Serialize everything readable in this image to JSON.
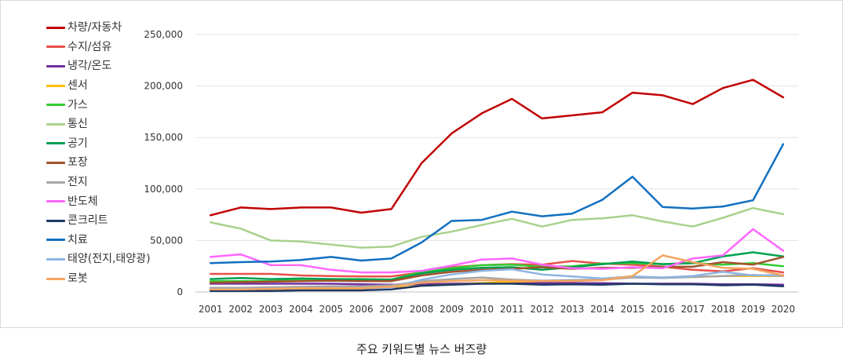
{
  "caption": "주요 키워드별 뉴스 버즈량",
  "chart_data": {
    "type": "line",
    "title": "",
    "xlabel": "",
    "ylabel": "",
    "ylim": [
      0,
      250000
    ],
    "yticks": [
      0,
      50000,
      100000,
      150000,
      200000,
      250000
    ],
    "ytick_labels": [
      "0",
      "50,000",
      "100,000",
      "150,000",
      "200,000",
      "250,000"
    ],
    "grid": true,
    "legend_position": "left",
    "x": [
      "2001",
      "2002",
      "2003",
      "2004",
      "2005",
      "2006",
      "2007",
      "2008",
      "2009",
      "2010",
      "2011",
      "2012",
      "2013",
      "2014",
      "2015",
      "2016",
      "2017",
      "2018",
      "2019",
      "2020"
    ],
    "series": [
      {
        "name": "차량/자동차",
        "color": "#c00000",
        "values": [
          74500,
          82000,
          80500,
          82000,
          82000,
          77000,
          80500,
          125000,
          154000,
          173500,
          187500,
          168500,
          171500,
          174500,
          193500,
          191000,
          182500,
          198000,
          206000,
          189000
        ]
      },
      {
        "name": "수지/섬유",
        "color": "#e8504a",
        "values": [
          17500,
          17500,
          17500,
          16000,
          15500,
          15000,
          15000,
          19000,
          24000,
          26000,
          27000,
          26500,
          30000,
          27500,
          26500,
          24500,
          21500,
          20000,
          23000,
          19000
        ]
      },
      {
        "name": "냉각/온도",
        "color": "#7030a0",
        "values": [
          8000,
          8000,
          8000,
          8000,
          8000,
          7500,
          7000,
          7500,
          8000,
          8500,
          8500,
          8500,
          8500,
          8500,
          8000,
          8000,
          8000,
          7500,
          7500,
          7000
        ]
      },
      {
        "name": "센서",
        "color": "#ffc000",
        "values": [
          2000,
          2000,
          2000,
          2500,
          2500,
          2500,
          3500,
          6000,
          7000,
          8500,
          10000,
          10500,
          11000,
          11500,
          14500,
          14000,
          14500,
          15500,
          15500,
          15500
        ]
      },
      {
        "name": "가스",
        "color": "#33cc33",
        "values": [
          10500,
          10500,
          10500,
          12500,
          12500,
          12500,
          12000,
          19500,
          23000,
          26000,
          26500,
          24500,
          25000,
          27500,
          28000,
          27000,
          28000,
          26500,
          28000,
          25000
        ]
      },
      {
        "name": "통신",
        "color": "#a9d18e",
        "values": [
          67500,
          61500,
          50000,
          49000,
          46000,
          43000,
          44000,
          53500,
          58500,
          65000,
          71000,
          63500,
          70000,
          71500,
          74500,
          68500,
          63500,
          72000,
          81500,
          75500
        ]
      },
      {
        "name": "공기",
        "color": "#00a050",
        "values": [
          12500,
          13500,
          12500,
          13000,
          12500,
          12000,
          12000,
          18000,
          21500,
          23500,
          24000,
          21500,
          24000,
          27000,
          29500,
          27000,
          28000,
          34500,
          38500,
          34500
        ]
      },
      {
        "name": "포장",
        "color": "#a0522d",
        "values": [
          9000,
          9500,
          10000,
          10500,
          11000,
          10500,
          10500,
          16000,
          19500,
          21500,
          22500,
          24000,
          22500,
          23500,
          23500,
          24500,
          24500,
          29000,
          26500,
          34000
        ]
      },
      {
        "name": "전지",
        "color": "#a6a6a6",
        "values": [
          4000,
          4000,
          4500,
          5000,
          5500,
          5500,
          6500,
          10500,
          12500,
          14000,
          12000,
          11000,
          11500,
          12000,
          14000,
          13500,
          14500,
          15500,
          16500,
          15500
        ]
      },
      {
        "name": "반도체",
        "color": "#ff66ff",
        "values": [
          34000,
          36500,
          26000,
          26000,
          21500,
          19000,
          19000,
          20500,
          25500,
          31500,
          32500,
          26500,
          23000,
          22500,
          24000,
          23000,
          32500,
          35500,
          61000,
          40000
        ]
      },
      {
        "name": "콘크리트",
        "color": "#1f3864",
        "values": [
          1000,
          1000,
          1000,
          1500,
          1500,
          1500,
          2500,
          6000,
          7000,
          8000,
          8000,
          7000,
          7500,
          7000,
          8000,
          7500,
          7500,
          6500,
          7000,
          5500
        ]
      },
      {
        "name": "치료",
        "color": "#1070c0",
        "values": [
          28000,
          29000,
          29500,
          31000,
          34000,
          30500,
          32500,
          48000,
          69000,
          70000,
          78000,
          73500,
          76000,
          89500,
          112000,
          82500,
          81000,
          83000,
          89000,
          143500
        ]
      },
      {
        "name": "태양(전지,태양광)",
        "color": "#8eb4e3",
        "values": [
          3000,
          3000,
          3000,
          3500,
          3500,
          3500,
          4000,
          12000,
          17000,
          20500,
          22000,
          17000,
          15000,
          13000,
          15000,
          14000,
          15500,
          19500,
          16000,
          16500
        ]
      },
      {
        "name": "로봇",
        "color": "#f4a460",
        "values": [
          2500,
          2500,
          3000,
          3500,
          3500,
          3500,
          5000,
          9000,
          10500,
          11500,
          11000,
          10500,
          10500,
          11500,
          15500,
          35500,
          29000,
          23500,
          22500,
          16000
        ]
      }
    ]
  }
}
